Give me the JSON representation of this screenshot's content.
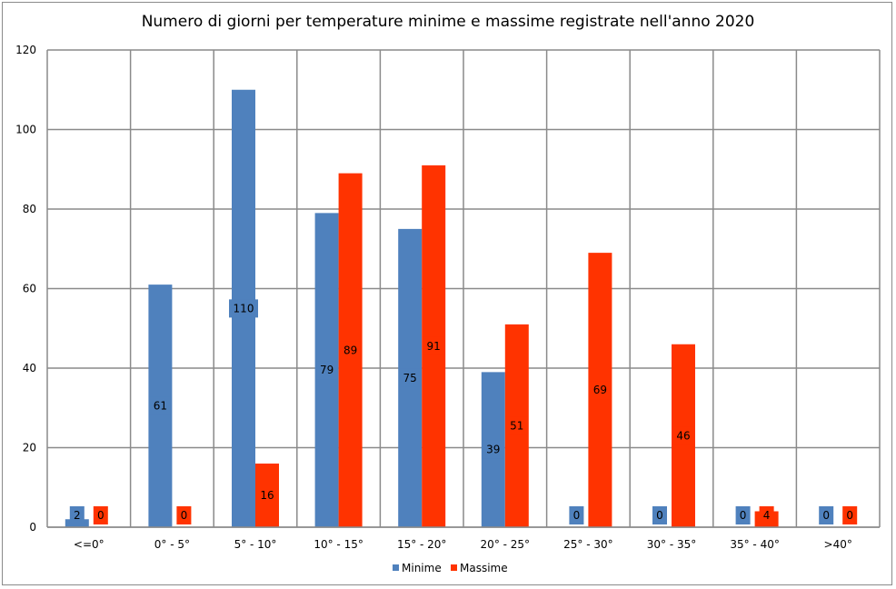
{
  "chart_data": {
    "type": "bar",
    "title": "Numero di giorni per temperature minime e massime registrate nell'anno 2020",
    "xlabel": "",
    "ylabel": "",
    "categories": [
      "<=0°",
      "0° - 5°",
      "5° - 10°",
      "10° - 15°",
      "15° - 20°",
      "20° - 25°",
      "25° - 30°",
      "30° - 35°",
      "35° - 40°",
      ">40°"
    ],
    "series": [
      {
        "name": "Minime",
        "color": "#4f81bd",
        "values": [
          2,
          61,
          110,
          79,
          75,
          39,
          0,
          0,
          0,
          0
        ]
      },
      {
        "name": "Massime",
        "color": "#ff3300",
        "values": [
          0,
          0,
          16,
          89,
          91,
          51,
          69,
          46,
          4,
          0
        ]
      }
    ],
    "ylim": [
      0,
      120
    ],
    "yticks": [
      0,
      20,
      40,
      60,
      80,
      100,
      120
    ],
    "grid": true,
    "legend_position": "bottom",
    "data_labels": true
  }
}
